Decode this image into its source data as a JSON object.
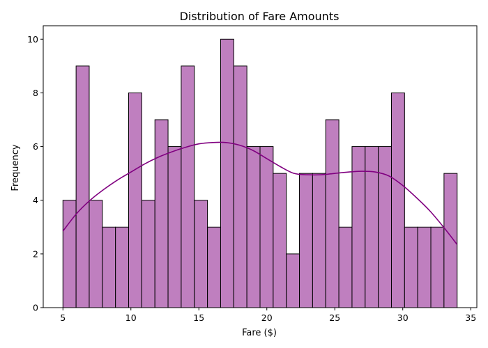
{
  "chart_data": {
    "type": "bar",
    "title": "Distribution of Fare Amounts",
    "xlabel": "Fare ($)",
    "ylabel": "Frequency",
    "xlim": [
      3.55,
      35.45
    ],
    "ylim": [
      0,
      10.5
    ],
    "x_ticks": [
      5,
      10,
      15,
      20,
      25,
      30,
      35
    ],
    "y_ticks": [
      0,
      2,
      4,
      6,
      8,
      10
    ],
    "x_tick_labels": [
      "5",
      "10",
      "15",
      "20",
      "25",
      "30",
      "35"
    ],
    "y_tick_labels": [
      "0",
      "2",
      "4",
      "6",
      "8",
      "10"
    ],
    "bins": {
      "edges": [
        5.0,
        5.967,
        6.933,
        7.9,
        8.867,
        9.833,
        10.8,
        11.767,
        12.733,
        13.7,
        14.667,
        15.633,
        16.6,
        17.567,
        18.533,
        19.5,
        20.467,
        21.433,
        22.4,
        23.367,
        24.333,
        25.3,
        26.267,
        27.233,
        28.2,
        29.167,
        30.133,
        31.1,
        32.067,
        33.033,
        34.0
      ],
      "counts": [
        4,
        9,
        4,
        3,
        3,
        8,
        4,
        7,
        6,
        9,
        4,
        3,
        10,
        9,
        6,
        6,
        5,
        2,
        5,
        5,
        7,
        3,
        6,
        6,
        6,
        8,
        3,
        3,
        3,
        5
      ]
    },
    "kde": {
      "x": [
        5,
        6,
        7,
        8,
        9,
        10,
        11,
        12,
        13,
        14,
        15,
        16,
        17,
        18,
        19,
        20,
        21,
        22,
        23,
        24,
        25,
        26,
        27,
        28,
        29,
        30,
        31,
        32,
        33,
        34
      ],
      "y": [
        2.85,
        3.5,
        4.0,
        4.4,
        4.75,
        5.05,
        5.35,
        5.6,
        5.8,
        5.97,
        6.1,
        6.15,
        6.15,
        6.05,
        5.85,
        5.55,
        5.25,
        5.0,
        4.95,
        4.95,
        5.0,
        5.05,
        5.08,
        5.05,
        4.9,
        4.55,
        4.1,
        3.6,
        3.0,
        2.35
      ]
    },
    "colors": {
      "bar_fill": "#bf7fbf",
      "bar_edge": "#000000",
      "kde_line": "#800080"
    },
    "grid": false,
    "legend": "none"
  }
}
